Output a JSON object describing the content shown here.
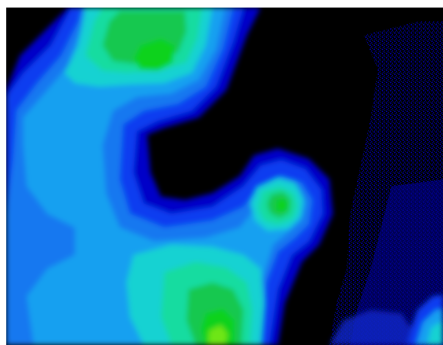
{
  "image": {
    "description_free": true,
    "palette": {
      "background": "#000000",
      "deep_blue": "#0000c8",
      "blue": "#0a3cf0",
      "azure": "#1478f0",
      "sky": "#14a0f0",
      "cyan": "#14d2d2",
      "aqua_green": "#14dca0",
      "green": "#14c850",
      "bright_green": "#0fd21e",
      "lime": "#6ee614"
    }
  }
}
